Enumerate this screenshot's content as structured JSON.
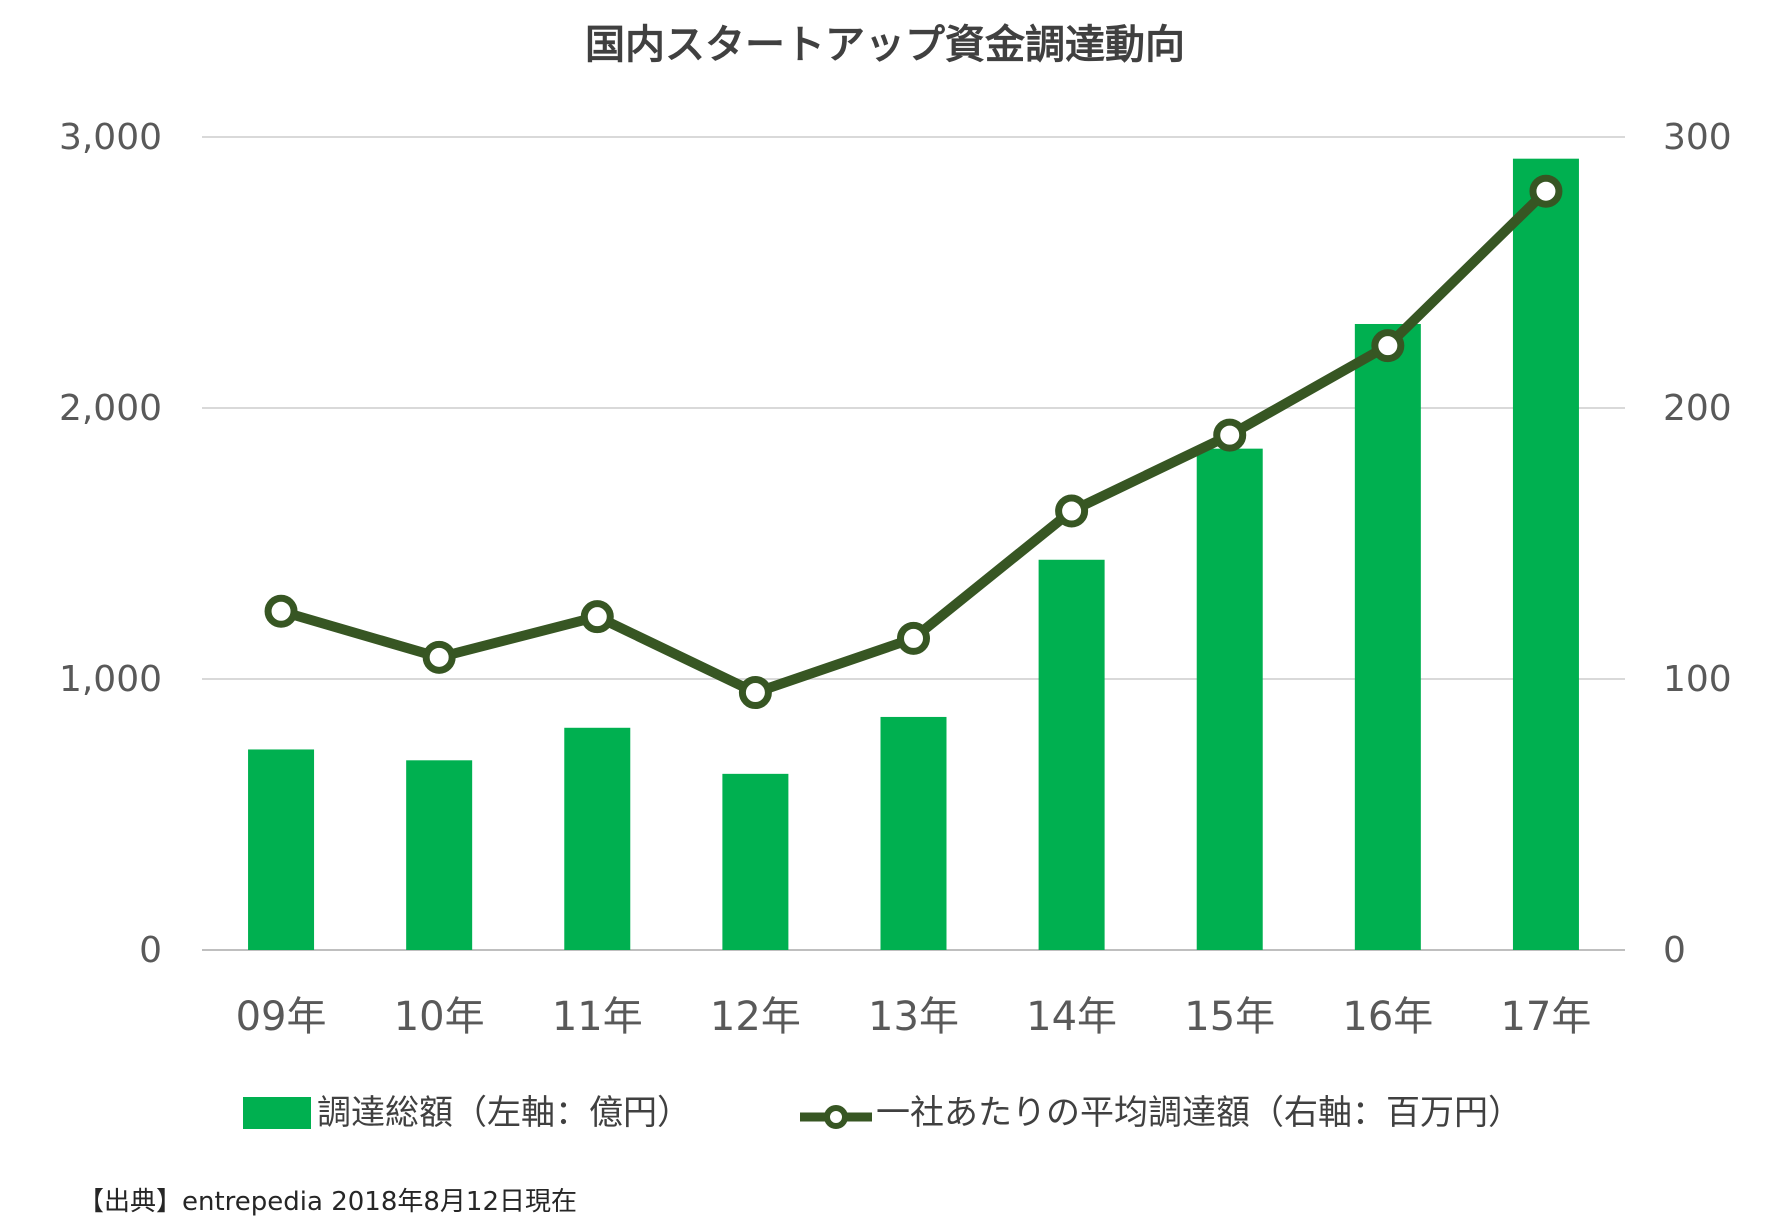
{
  "chart_data": {
    "type": "bar",
    "title": "国内スタートアップ資金調達動向",
    "categories": [
      "09年",
      "10年",
      "11年",
      "12年",
      "13年",
      "14年",
      "15年",
      "16年",
      "17年"
    ],
    "series": [
      {
        "name": "調達総額（左軸：億円）",
        "type": "bar",
        "axis": "left",
        "color": "#00B050",
        "values": [
          740,
          700,
          820,
          650,
          860,
          1440,
          1850,
          2310,
          2920
        ]
      },
      {
        "name": "一社あたりの平均調達額（右軸：百万円）",
        "type": "line",
        "axis": "right",
        "color": "#375623",
        "marker": "circle-white",
        "values": [
          125,
          108,
          123,
          95,
          115,
          162,
          190,
          223,
          280
        ]
      }
    ],
    "y_left": {
      "min": 0,
      "max": 3000,
      "ticks": [
        0,
        1000,
        2000,
        3000
      ],
      "tick_labels": [
        "0",
        "1,000",
        "2,000",
        "3,000"
      ]
    },
    "y_right": {
      "min": 0,
      "max": 300,
      "ticks": [
        0,
        100,
        200,
        300
      ],
      "tick_labels": [
        "0",
        "100",
        "200",
        "300"
      ]
    },
    "grid": true,
    "legend_position": "bottom",
    "source": "【出典】entrepedia 2018年8月12日現在"
  }
}
